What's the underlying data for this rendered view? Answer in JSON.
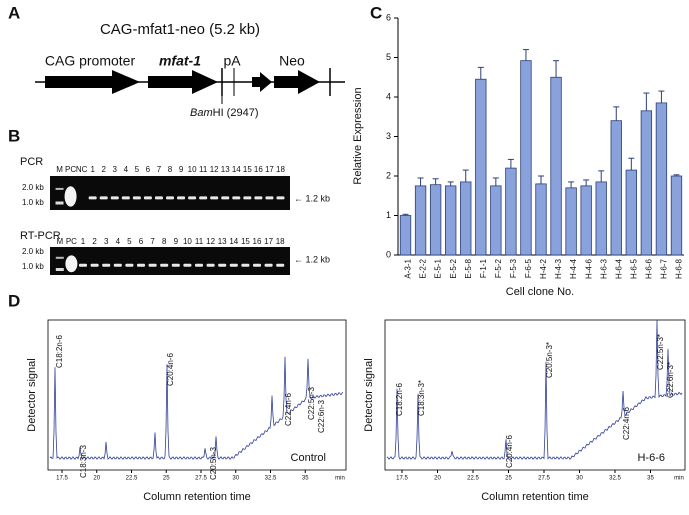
{
  "panel_labels": [
    "A",
    "B",
    "C",
    "D"
  ],
  "construct": {
    "title": "CAG-mfat1-neo (5.2 kb)",
    "elements": [
      "CAG promoter",
      "mfat-1",
      "pA",
      "Neo"
    ],
    "site": {
      "italic": "Bam",
      "rest": "HI (2947)"
    }
  },
  "gel": {
    "rows": [
      {
        "label": "PCR",
        "lanes": [
          "M",
          "PC",
          "NC",
          "1",
          "2",
          "3",
          "4",
          "5",
          "6",
          "7",
          "8",
          "9",
          "10",
          "11",
          "12",
          "13",
          "14",
          "15",
          "16",
          "17",
          "18"
        ]
      },
      {
        "label": "RT-PCR",
        "lanes": [
          "M",
          "PC",
          "1",
          "2",
          "3",
          "4",
          "5",
          "6",
          "7",
          "8",
          "9",
          "10",
          "11",
          "12",
          "13",
          "14",
          "15",
          "16",
          "17",
          "18"
        ]
      }
    ],
    "ladder": [
      "2.0 kb",
      "1.0 kb"
    ],
    "product": "← 1.2 kb"
  },
  "chart_data": {
    "type": "bar",
    "y_label": "Relative Expression",
    "x_label": "Cell clone No.",
    "categories": [
      "A-3-1",
      "E-2-2",
      "E-5-1",
      "E-5-2",
      "E-5-8",
      "F-1-1",
      "F-5-2",
      "F-5-3",
      "F-6-5",
      "H-4-2",
      "H-4-3",
      "H-4-4",
      "H-4-6",
      "H-6-3",
      "H-6-4",
      "H-6-5",
      "H-6-6",
      "H-6-7",
      "H-6-8"
    ],
    "values": [
      1.0,
      1.75,
      1.78,
      1.75,
      1.85,
      4.45,
      1.75,
      2.2,
      4.92,
      1.8,
      4.5,
      1.7,
      1.75,
      1.85,
      3.4,
      2.15,
      3.65,
      3.85,
      2.0
    ],
    "errors": [
      0.03,
      0.2,
      0.15,
      0.1,
      0.3,
      0.3,
      0.2,
      0.22,
      0.28,
      0.2,
      0.42,
      0.15,
      0.15,
      0.28,
      0.35,
      0.3,
      0.45,
      0.3,
      0.03
    ],
    "color": "#8aa2dc",
    "edge_color": "#2b3f7a",
    "ylim": [
      0,
      6
    ],
    "yticks": [
      0,
      1,
      2,
      3,
      4,
      5,
      6
    ]
  },
  "chromatogram_axis": {
    "ticks": [
      17.5,
      20,
      22.5,
      25,
      27.5,
      30,
      32.5,
      35
    ],
    "unit": "min",
    "x_label": "Column retention time",
    "y_label": "Detector signal"
  },
  "chromatograms": [
    {
      "sample": "Control",
      "peaks": [
        "C18:2n-6",
        "C18:3n-3",
        "C20:4n-6",
        "C20:5n-3",
        "C22:4n-6",
        "C22:5n-3",
        "C22:6n-3"
      ]
    },
    {
      "sample": "H-6-6",
      "peaks": [
        "C18:2n-6",
        "C18:3n-3*",
        "C20:4n-6",
        "C20:5n-3*",
        "C22:4n-6",
        "C22:5n-3*",
        "C22:6n-3*"
      ]
    }
  ]
}
